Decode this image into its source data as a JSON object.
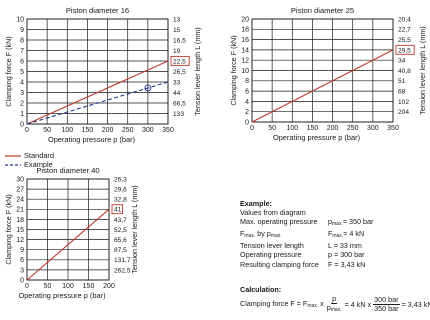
{
  "charts": [
    {
      "title": "Piston diameter 16",
      "ylabel": "Clamping force F (kN)",
      "y2label": "Tension lever length L (mm)",
      "xlabel": "Operating pressure p (bar)",
      "xticks": [
        0,
        50,
        100,
        150,
        200,
        250,
        300,
        350
      ],
      "yticks": [
        0,
        1,
        2,
        3,
        4,
        5,
        6,
        7,
        8,
        9,
        10
      ],
      "yticklabels": [
        "0",
        "1",
        "2",
        "3",
        "4",
        "5",
        "6",
        "7",
        "8",
        "9",
        "10"
      ],
      "y2ticklabels": [
        "",
        "133",
        "66,5",
        "44",
        "33",
        "26,5",
        "22,5",
        "19",
        "16,5",
        "15",
        "13"
      ],
      "boxed_y2": "22,5"
    },
    {
      "title": "Piston diameter 25",
      "ylabel": "Clamping force F (kN)",
      "y2label": "Tension lever length L (mm)",
      "xlabel": "Operating pressure p (bar)",
      "xticks": [
        0,
        50,
        100,
        150,
        200,
        250,
        300,
        350
      ],
      "yticks": [
        0,
        2,
        4,
        6,
        8,
        10,
        12,
        14,
        16,
        18,
        20
      ],
      "yticklabels": [
        "0",
        "2",
        "4",
        "6",
        "8",
        "10",
        "12",
        "14",
        "16",
        "18",
        "20"
      ],
      "y2ticklabels": [
        "",
        "204",
        "102",
        "68",
        "51",
        "40,8",
        "34",
        "29,5",
        "25,5",
        "22,7",
        "20,4"
      ],
      "boxed_y2": "29,5"
    },
    {
      "title": "Piston diameter 40",
      "ylabel": "Clamping force F (kN)",
      "y2label": "Tension lever length L (mm)",
      "xlabel": "Operating pressure p (bar)",
      "xticks": [
        0,
        50,
        100,
        150,
        200
      ],
      "yticks": [
        0,
        3,
        6,
        9,
        12,
        15,
        18,
        21,
        24,
        27,
        30
      ],
      "yticklabels": [
        "0",
        "3",
        "6",
        "9",
        "12",
        "15",
        "18",
        "21",
        "24",
        "27",
        "30"
      ],
      "y2ticklabels": [
        "",
        "262,5",
        "131,7",
        "87,5",
        "65,6",
        "52,5",
        "43,7",
        "41",
        "32,8",
        "29,6",
        "26,3"
      ],
      "boxed_y2": "41"
    }
  ],
  "legend": {
    "standard_label": "Standard",
    "example_label": "Example"
  },
  "example": {
    "heading": "Example:",
    "intro": "Values from diagram",
    "rows": [
      {
        "k": "Max. operating pressure",
        "v": "pmax.= 350 bar"
      },
      {
        "k": "Fmax. by pmax.",
        "v": "Fmax.= 4 kN"
      },
      {
        "k": "Tension lever length",
        "v": "L = 33 mm"
      },
      {
        "k": "Operating pressure",
        "v": "p = 300 bar"
      },
      {
        "k": "Resulting clamping force",
        "v": "F = 3,43 kN"
      }
    ]
  },
  "calculation": {
    "heading": "Calculation:",
    "lead": "Clamping force F = Fmax. x",
    "frac1_num": "p",
    "frac1_den": "pmax.",
    "mid": "= 4 kN x",
    "frac2_num": "300 bar",
    "frac2_den": "350 bar",
    "result": "= 3,43 kN"
  },
  "colors": {
    "standard": "#c0392b",
    "example": "#1f3a8a",
    "grid": "#1a1a1a"
  },
  "chart_data": [
    {
      "type": "line",
      "title": "Piston diameter 16",
      "xlabel": "Operating pressure p (bar)",
      "ylabel": "Clamping force F (kN)",
      "y2label": "Tension lever length L (mm)",
      "xlim": [
        0,
        350
      ],
      "ylim": [
        0,
        10
      ],
      "grid": true,
      "series": [
        {
          "name": "Standard",
          "x": [
            0,
            350
          ],
          "y": [
            0,
            6
          ]
        },
        {
          "name": "Example",
          "x": [
            0,
            350
          ],
          "y": [
            0,
            4
          ]
        }
      ],
      "marker": {
        "x": 300,
        "y": 3.43
      }
    },
    {
      "type": "line",
      "title": "Piston diameter 25",
      "xlabel": "Operating pressure p (bar)",
      "ylabel": "Clamping force F (kN)",
      "y2label": "Tension lever length L (mm)",
      "xlim": [
        0,
        350
      ],
      "ylim": [
        0,
        20
      ],
      "grid": true,
      "series": [
        {
          "name": "Standard",
          "x": [
            0,
            350
          ],
          "y": [
            0,
            14
          ]
        }
      ]
    },
    {
      "type": "line",
      "title": "Piston diameter 40",
      "xlabel": "Operating pressure p (bar)",
      "ylabel": "Clamping force F (kN)",
      "y2label": "Tension lever length L (mm)",
      "xlim": [
        0,
        200
      ],
      "ylim": [
        0,
        30
      ],
      "grid": true,
      "series": [
        {
          "name": "Standard",
          "x": [
            0,
            200
          ],
          "y": [
            0,
            21
          ]
        }
      ]
    }
  ]
}
